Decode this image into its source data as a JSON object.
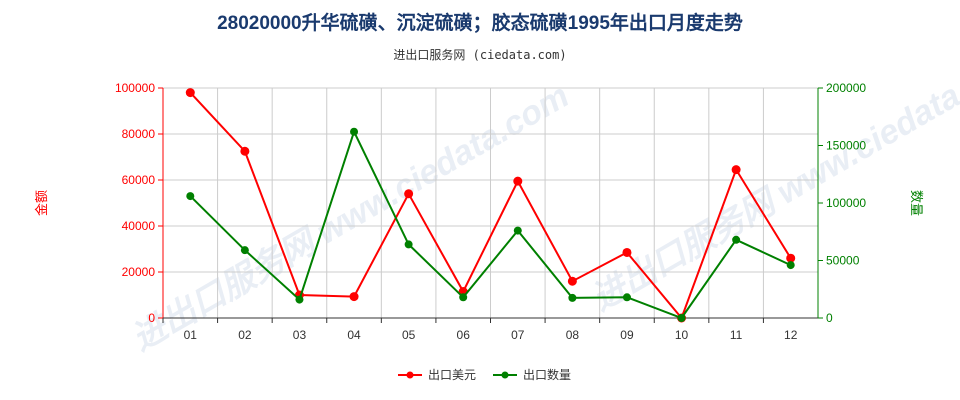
{
  "title": "28020000升华硫磺、沉淀硫磺；胶态硫磺1995年出口月度走势",
  "subtitle": "进出口服务网 (ciedata.com)",
  "watermark": "进出口服务网 www.ciedata.com",
  "colors": {
    "usd": "#ff0000",
    "qty": "#008000",
    "grid": "#cccccc",
    "axis": "#333333"
  },
  "chart_data": {
    "type": "line",
    "categories": [
      "01",
      "02",
      "03",
      "04",
      "05",
      "06",
      "07",
      "08",
      "09",
      "10",
      "11",
      "12"
    ],
    "y_left": {
      "label": "金额",
      "ylim": [
        0,
        100000
      ],
      "ticks": [
        "0",
        "20000",
        "40000",
        "60000",
        "80000",
        "100000"
      ],
      "tick_values": [
        0,
        20000,
        40000,
        60000,
        80000,
        100000
      ]
    },
    "y_right": {
      "label": "数量",
      "ylim": [
        0,
        200000
      ],
      "ticks": [
        "0",
        "50000",
        "100000",
        "150000",
        "200000"
      ],
      "tick_values": [
        0,
        50000,
        100000,
        150000,
        200000
      ]
    },
    "series": [
      {
        "name": "出口美元",
        "axis": "left",
        "color": "#ff0000",
        "values": [
          98000,
          72500,
          10000,
          9300,
          54000,
          11500,
          59500,
          16000,
          28500,
          0,
          64500,
          26000
        ]
      },
      {
        "name": "出口数量",
        "axis": "right",
        "color": "#008000",
        "values": [
          106000,
          59000,
          16000,
          162000,
          64000,
          18000,
          76000,
          17500,
          18000,
          0,
          68000,
          46000
        ]
      }
    ],
    "grid": true,
    "legend": "bottom-center"
  }
}
